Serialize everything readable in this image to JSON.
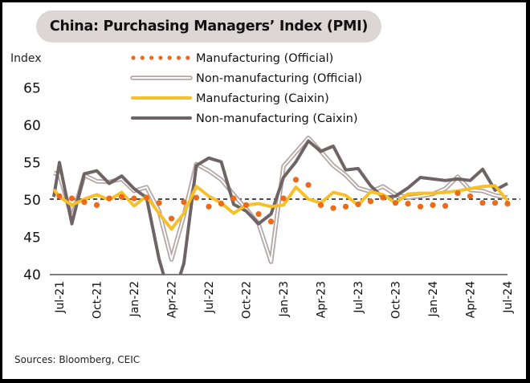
{
  "title": "China: Purchasing Managers’ Index (PMI)",
  "sources": "Sources: Bloomberg, CEIC",
  "colors": {
    "mfg_official": "#ec6a1c",
    "nonmfg_official": "#b3a6a4",
    "mfg_caixin": "#f7c02a",
    "nonmfg_caixin": "#6e6365",
    "reference_line": "#111111",
    "axis": "#555555"
  },
  "chart_data": {
    "type": "line",
    "title": "China: Purchasing Managers’ Index (PMI)",
    "xlabel": "",
    "ylabel": "Index",
    "ylim": [
      40,
      67
    ],
    "yticks": [
      40,
      45,
      50,
      55,
      60,
      65
    ],
    "reference_line": 50,
    "legend_position": "top-center",
    "grid": false,
    "x_tick_labels": [
      "Jul-21",
      "Oct-21",
      "Jan-22",
      "Apr-22",
      "Jul-22",
      "Oct-22",
      "Jan-23",
      "Apr-23",
      "Jul-23",
      "Oct-23",
      "Jan-24",
      "Apr-24",
      "Jul-24"
    ],
    "x": [
      "Jun-21",
      "Jul-21",
      "Aug-21",
      "Sep-21",
      "Oct-21",
      "Nov-21",
      "Dec-21",
      "Jan-22",
      "Feb-22",
      "Mar-22",
      "Apr-22",
      "May-22",
      "Jun-22",
      "Jul-22",
      "Aug-22",
      "Sep-22",
      "Oct-22",
      "Nov-22",
      "Dec-22",
      "Jan-23",
      "Feb-23",
      "Mar-23",
      "Apr-23",
      "May-23",
      "Jun-23",
      "Jul-23",
      "Aug-23",
      "Sep-23",
      "Oct-23",
      "Nov-23",
      "Dec-23",
      "Jan-24",
      "Feb-24",
      "Mar-24",
      "Apr-24",
      "May-24",
      "Jun-24",
      "Jul-24"
    ],
    "series": [
      {
        "name": "Manufacturing (Official)",
        "style": "dotted",
        "values": [
          50.9,
          50.4,
          50.1,
          49.6,
          49.2,
          50.1,
          50.3,
          50.1,
          50.2,
          49.5,
          47.4,
          49.6,
          50.2,
          49.0,
          49.4,
          50.1,
          49.2,
          48.0,
          47.0,
          50.1,
          52.6,
          51.9,
          49.2,
          48.8,
          49.0,
          49.3,
          49.7,
          50.2,
          49.5,
          49.4,
          49.0,
          49.2,
          49.1,
          50.8,
          50.4,
          49.5,
          49.5,
          49.4
        ]
      },
      {
        "name": "Non-manufacturing (Official)",
        "style": "double-line",
        "values": [
          53.5,
          53.3,
          47.5,
          53.2,
          52.4,
          52.3,
          52.7,
          51.1,
          51.6,
          48.4,
          41.9,
          47.8,
          54.7,
          53.8,
          52.6,
          50.6,
          48.7,
          46.7,
          41.6,
          54.4,
          56.3,
          58.2,
          56.4,
          54.5,
          53.2,
          51.5,
          51.0,
          51.7,
          50.6,
          50.2,
          50.4,
          50.7,
          51.4,
          53.0,
          51.2,
          51.1,
          50.5,
          50.2
        ]
      },
      {
        "name": "Manufacturing (Caixin)",
        "style": "solid",
        "values": [
          51.3,
          50.3,
          49.2,
          50.0,
          50.6,
          49.9,
          50.9,
          49.1,
          50.4,
          48.1,
          46.0,
          48.1,
          51.7,
          50.4,
          49.5,
          48.1,
          49.2,
          49.4,
          49.0,
          49.2,
          51.6,
          50.0,
          49.5,
          50.9,
          50.5,
          49.2,
          51.0,
          50.6,
          49.5,
          50.7,
          50.8,
          50.8,
          50.9,
          51.1,
          51.4,
          51.7,
          51.8,
          49.8
        ]
      },
      {
        "name": "Non-manufacturing (Caixin)",
        "style": "solid",
        "values": [
          50.3,
          54.9,
          46.7,
          53.4,
          53.8,
          52.1,
          53.1,
          51.4,
          50.2,
          42.0,
          36.2,
          41.4,
          54.5,
          55.5,
          55.0,
          49.3,
          48.4,
          46.7,
          48.0,
          52.9,
          55.0,
          57.8,
          56.4,
          57.1,
          53.9,
          54.1,
          51.8,
          50.2,
          50.4,
          51.5,
          52.9,
          52.7,
          52.5,
          52.7,
          52.5,
          54.0,
          51.2,
          52.1
        ]
      }
    ]
  }
}
